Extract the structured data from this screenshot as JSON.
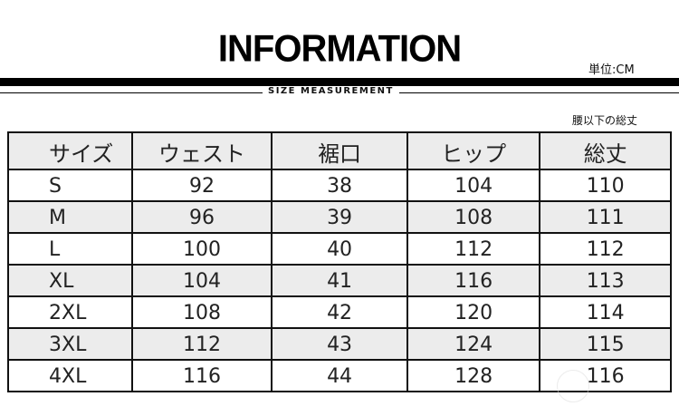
{
  "title": "INFORMATION",
  "unit": "単位:CM",
  "subtitle": "SIZE MEASUREMENT",
  "note": "腰以下の総丈",
  "table": {
    "headers": [
      "サイズ",
      "ウェスト",
      "裾口",
      "ヒップ",
      "総丈"
    ],
    "rows": [
      [
        "S",
        "92",
        "38",
        "104",
        "110"
      ],
      [
        "M",
        "96",
        "39",
        "108",
        "111"
      ],
      [
        "L",
        "100",
        "40",
        "112",
        "112"
      ],
      [
        "XL",
        "104",
        "41",
        "116",
        "113"
      ],
      [
        "2XL",
        "108",
        "42",
        "120",
        "114"
      ],
      [
        "3XL",
        "112",
        "43",
        "124",
        "115"
      ],
      [
        "4XL",
        "116",
        "44",
        "128",
        "116"
      ]
    ]
  }
}
